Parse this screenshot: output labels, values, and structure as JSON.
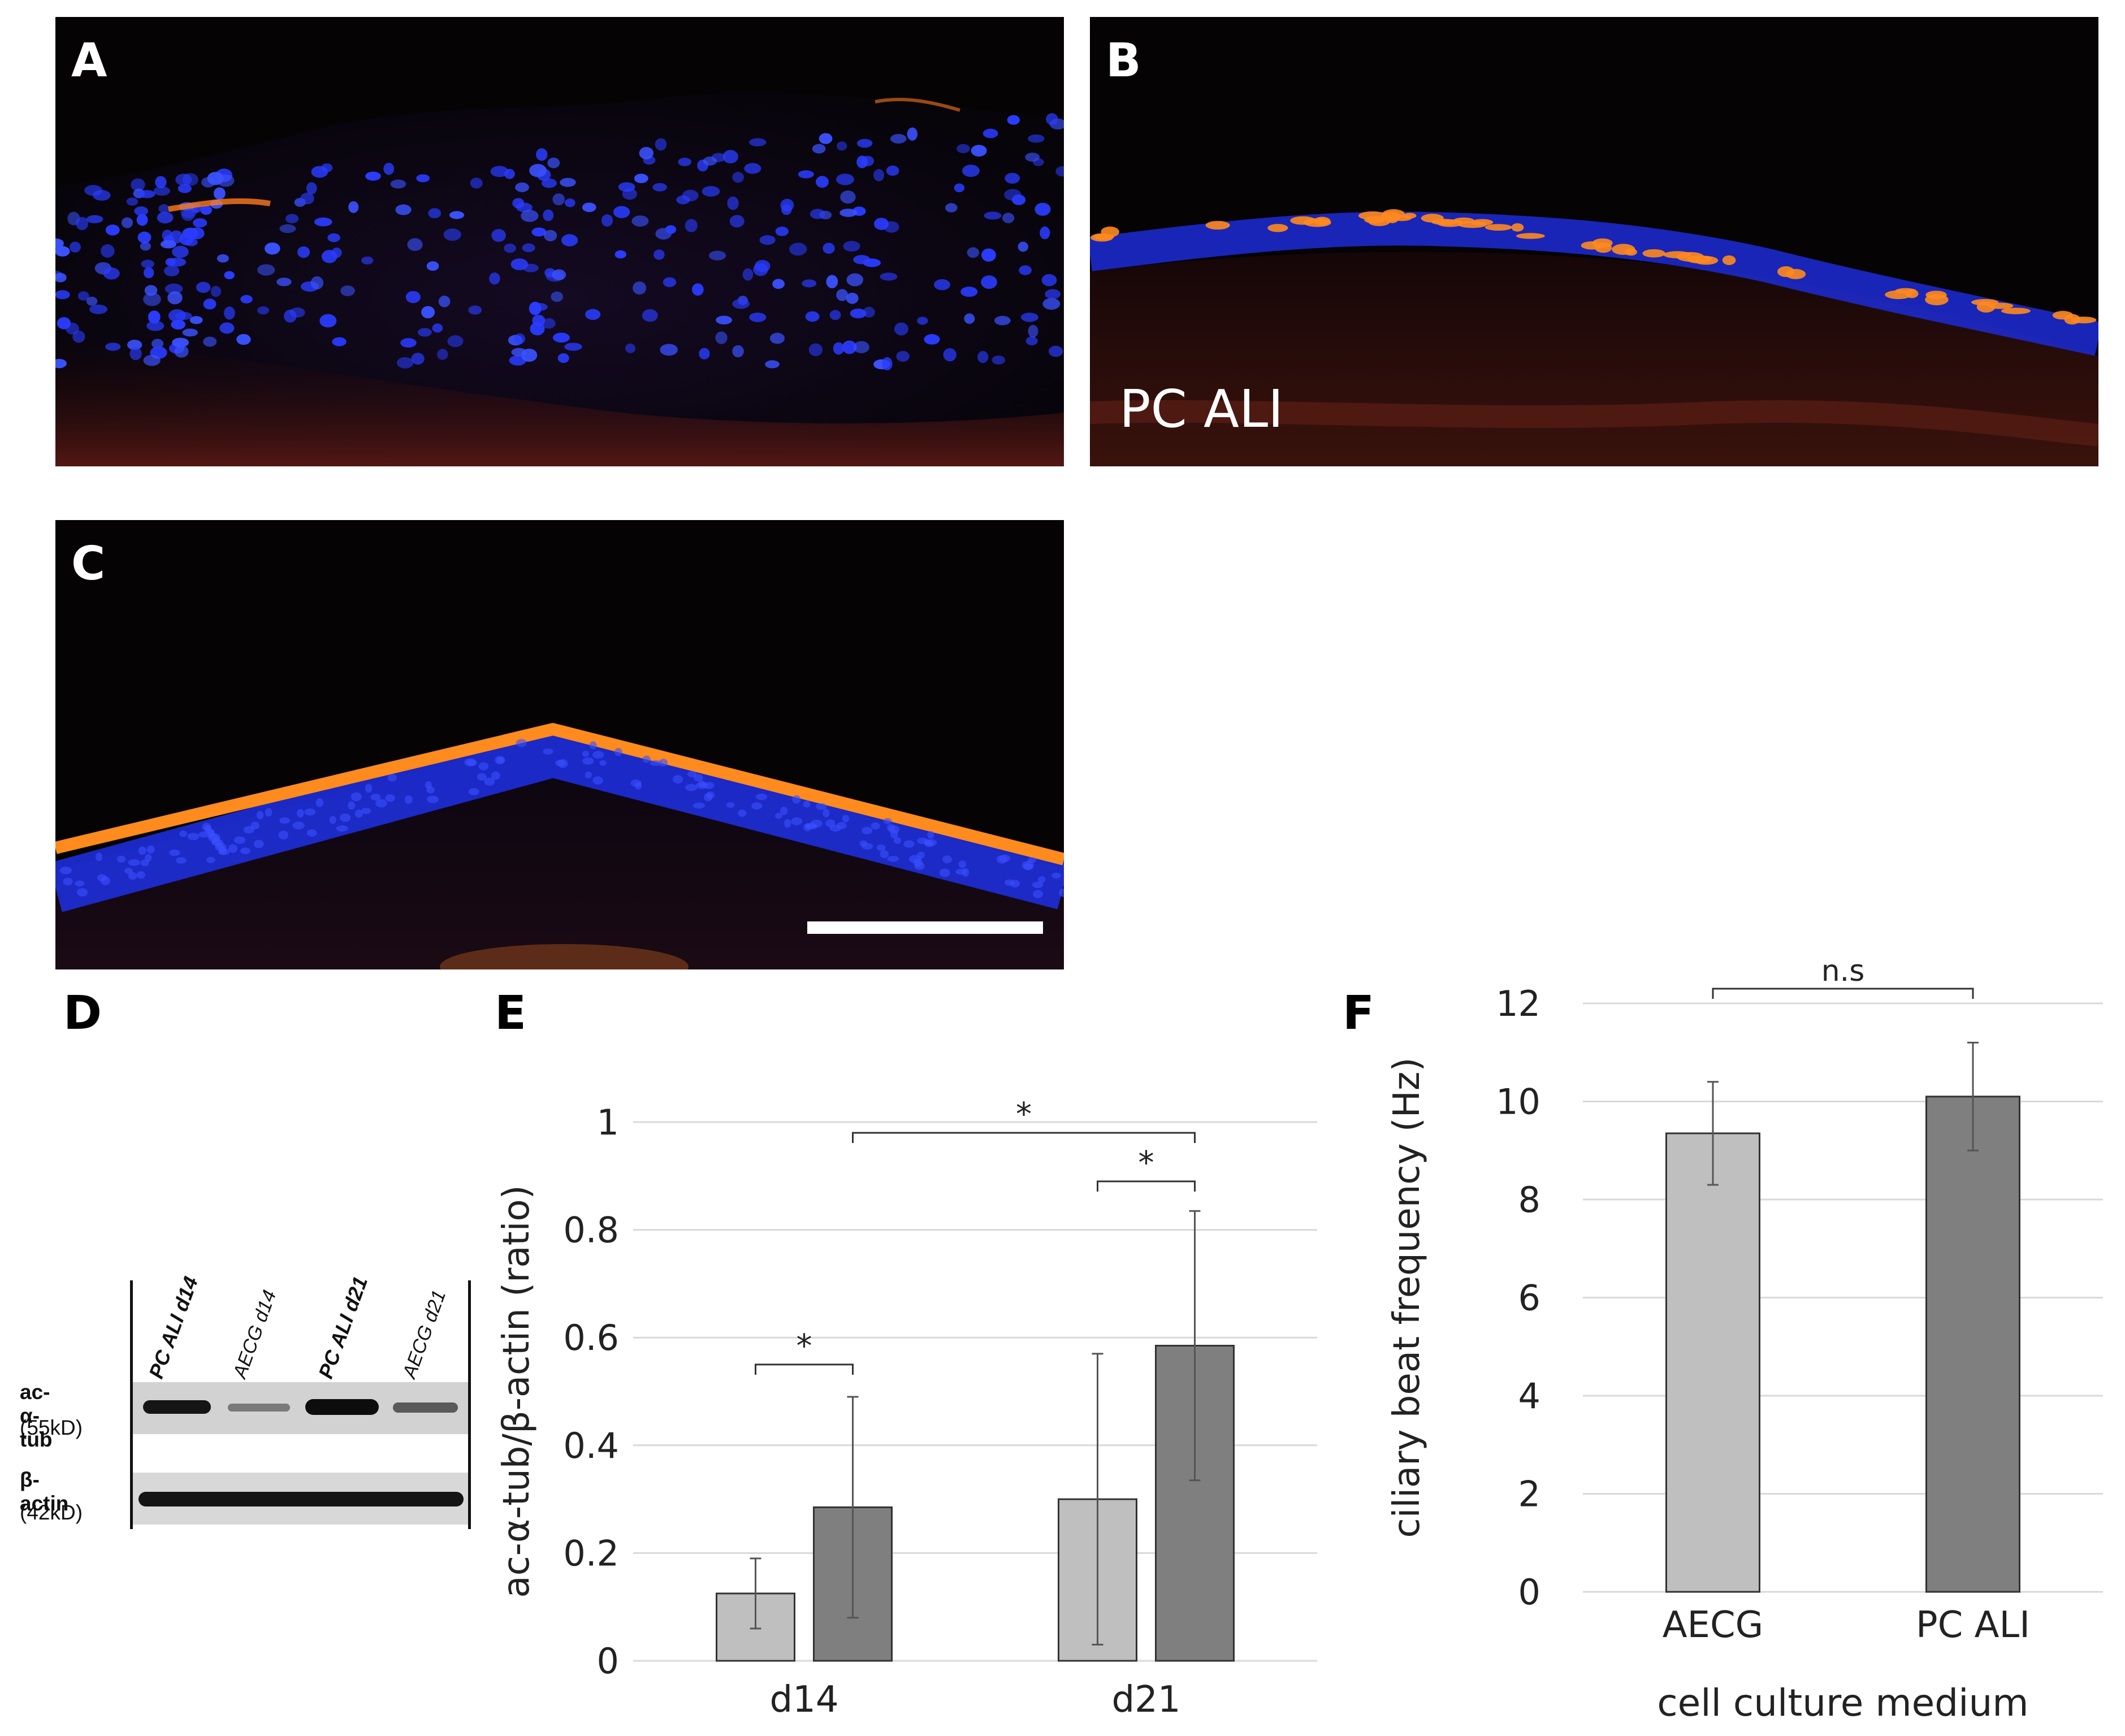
{
  "panels": {
    "a": {
      "label": "A"
    },
    "b": {
      "label": "B",
      "inset_label": "PC ALI"
    },
    "c": {
      "label": "C"
    },
    "d": {
      "label": "D"
    },
    "e": {
      "label": "E"
    },
    "f": {
      "label": "F"
    }
  },
  "blot": {
    "lanes": [
      "PC ALI d14",
      "AECG d14",
      "PC ALI d21",
      "AECG d21"
    ],
    "rows": [
      {
        "name": "ac-α-tub",
        "size": "(55kD)"
      },
      {
        "name": "β-actin",
        "size": "(42kD)"
      }
    ]
  },
  "colors": {
    "series_light": "#bfbfbf",
    "series_dark": "#7f7f7f",
    "nuclei_blue": "#2a3cff",
    "cilia_orange": "#ff8a1e"
  },
  "chart_data": [
    {
      "type": "bar",
      "panel": "E",
      "categories": [
        "d14",
        "d21"
      ],
      "series": [
        {
          "values": [
            0.125,
            0.3
          ],
          "errors": [
            0.065,
            0.27
          ]
        },
        {
          "values": [
            0.285,
            0.585
          ],
          "errors": [
            0.205,
            0.25
          ]
        }
      ],
      "ylabel": "ac-α-tub/β-actin (ratio)",
      "xlabel": "",
      "ylim": [
        0,
        1
      ],
      "ticks": [
        "0",
        "0.2",
        "0.4",
        "0.6",
        "0.8",
        "1"
      ],
      "tick_values": [
        0,
        0.2,
        0.4,
        0.6,
        0.8,
        1
      ],
      "grid": true,
      "significance": [
        {
          "label": "*",
          "from": "d14 light",
          "to": "d14 dark",
          "level": 0.55
        },
        {
          "label": "*",
          "from": "d21 light",
          "to": "d21 dark",
          "level": 0.89
        },
        {
          "label": "*",
          "from": "d14 dark",
          "to": "d21 dark",
          "level": 0.98
        }
      ]
    },
    {
      "type": "bar",
      "panel": "F",
      "categories": [
        "AECG",
        "PC ALI"
      ],
      "values": [
        9.35,
        10.1
      ],
      "errors": [
        1.05,
        1.1
      ],
      "ylabel": "ciliary beat frequency (Hz)",
      "xlabel": "cell culture medium",
      "ylim": [
        0,
        12
      ],
      "ticks": [
        "0",
        "2",
        "4",
        "6",
        "8",
        "10",
        "12"
      ],
      "tick_values": [
        0,
        2,
        4,
        6,
        8,
        10,
        12
      ],
      "grid": true,
      "significance": [
        {
          "label": "n.s",
          "from": "AECG",
          "to": "PC ALI",
          "level": 12.3
        }
      ]
    }
  ]
}
